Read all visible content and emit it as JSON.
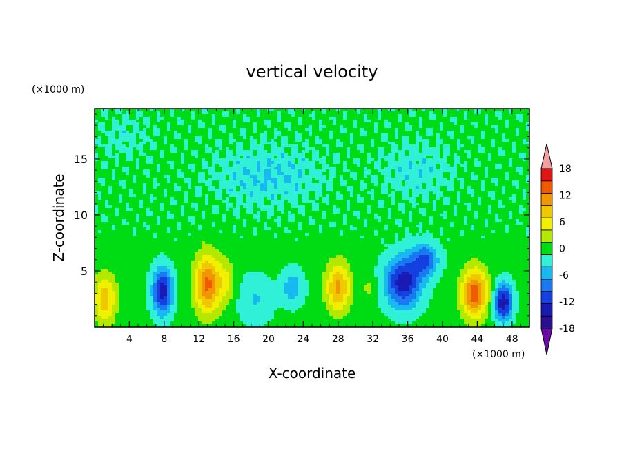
{
  "chart_data": {
    "type": "heatmap",
    "title": "vertical velocity",
    "xlabel": "X-coordinate",
    "ylabel": "Z-coordinate",
    "x_unit": "(×1000 m)",
    "y_unit": "(×1000 m)",
    "xlim": [
      0,
      50
    ],
    "ylim": [
      0,
      19.5
    ],
    "xticks": [
      4,
      8,
      12,
      16,
      20,
      24,
      28,
      32,
      36,
      40,
      44,
      48
    ],
    "yticks": [
      5,
      10,
      15
    ],
    "colorbar": {
      "levels": [
        -21,
        -18,
        -15,
        -12,
        -9,
        -6,
        -3,
        0,
        3,
        6,
        9,
        12,
        15,
        18,
        21
      ],
      "tick_labels": [
        "18",
        "12",
        "6",
        "0",
        "-6",
        "-12",
        "-18"
      ],
      "tick_values": [
        18,
        12,
        6,
        0,
        -6,
        -12,
        -18
      ],
      "colors": [
        "#6a0aa8",
        "#2a1090",
        "#1a1ab4",
        "#1440e0",
        "#1a78f0",
        "#18b8f0",
        "#30f0d8",
        "#00dc14",
        "#b4e800",
        "#f0f000",
        "#f0c800",
        "#f09600",
        "#f05a00",
        "#e01414",
        "#f0a0a0"
      ],
      "extend": "both"
    },
    "features": [
      {
        "x": 1.2,
        "z": 2.5,
        "amp": 10,
        "sx": 1.3,
        "sz": 2.2
      },
      {
        "x": 4.5,
        "z": 3.5,
        "amp": 2,
        "sx": 0.8,
        "sz": 1.2
      },
      {
        "x": 7.8,
        "z": 3.2,
        "amp": -15,
        "sx": 1.1,
        "sz": 2.0
      },
      {
        "x": 13.0,
        "z": 3.8,
        "amp": 15,
        "sx": 1.5,
        "sz": 2.6
      },
      {
        "x": 15.2,
        "z": 4.0,
        "amp": 5,
        "sx": 1.0,
        "sz": 2.0
      },
      {
        "x": 18.5,
        "z": 2.5,
        "amp": -4,
        "sx": 2.0,
        "sz": 2.0
      },
      {
        "x": 22.8,
        "z": 3.5,
        "amp": -6,
        "sx": 1.2,
        "sz": 1.5
      },
      {
        "x": 28.0,
        "z": 3.5,
        "amp": 12,
        "sx": 1.4,
        "sz": 2.2
      },
      {
        "x": 31.5,
        "z": 3.5,
        "amp": 3,
        "sx": 0.8,
        "sz": 1.0
      },
      {
        "x": 35.5,
        "z": 4.0,
        "amp": -15,
        "sx": 2.0,
        "sz": 2.2
      },
      {
        "x": 38.0,
        "z": 6.0,
        "amp": -10,
        "sx": 1.5,
        "sz": 1.5
      },
      {
        "x": 43.7,
        "z": 3.0,
        "amp": 16,
        "sx": 1.5,
        "sz": 2.2
      },
      {
        "x": 47.0,
        "z": 2.2,
        "amp": -16,
        "sx": 1.0,
        "sz": 1.6
      },
      {
        "x": 20.0,
        "z": 13.5,
        "amp": -4,
        "sx": 6.0,
        "sz": 2.5
      },
      {
        "x": 37.0,
        "z": 14.0,
        "amp": -3,
        "sx": 4.0,
        "sz": 2.5
      },
      {
        "x": 3.5,
        "z": 17.0,
        "amp": -2,
        "sx": 3.0,
        "sz": 2.0
      }
    ]
  }
}
